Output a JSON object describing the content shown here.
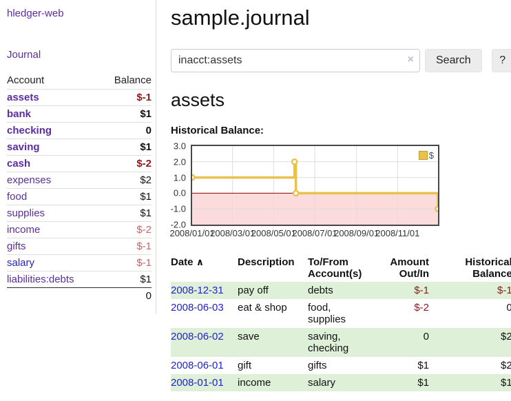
{
  "app": {
    "brand": "hledger-web"
  },
  "colors": {
    "link_purple": "#5b2d9e",
    "link_blue": "#2222cc",
    "negative_strong": "#8b1a1a",
    "negative_soft": "#c16868",
    "row_shaded_green": "#dff0d8",
    "chart_line_gold": "#e8c24d",
    "chart_negative_fill": "#fbdbdb",
    "chart_zero_line": "#990000"
  },
  "sidebar": {
    "journal_link": "Journal",
    "columns": {
      "account": "Account",
      "balance": "Balance"
    },
    "accounts": [
      {
        "name": "assets",
        "balance": "$-1"
      },
      {
        "name": "bank",
        "balance": "$1"
      },
      {
        "name": "checking",
        "balance": "0"
      },
      {
        "name": "saving",
        "balance": "$1"
      },
      {
        "name": "cash",
        "balance": "$-2"
      },
      {
        "name": "expenses",
        "balance": "$2"
      },
      {
        "name": "food",
        "balance": "$1"
      },
      {
        "name": "supplies",
        "balance": "$1"
      },
      {
        "name": "income",
        "balance": "$-2"
      },
      {
        "name": "gifts",
        "balance": "$-1"
      },
      {
        "name": "salary",
        "balance": "$-1"
      },
      {
        "name": "liabilities:debts",
        "balance": "$1"
      }
    ],
    "total": "0"
  },
  "header": {
    "title": "sample.journal"
  },
  "search": {
    "value": "inacct:assets",
    "clear_icon": "×",
    "search_button": "Search",
    "help_button": "?"
  },
  "account_page": {
    "heading": "assets",
    "chart_title": "Historical Balance:"
  },
  "chart_data": {
    "type": "line",
    "title": "Historical Balance",
    "style": "step",
    "x_range": [
      "2008-01-01",
      "2008-12-31"
    ],
    "ylim": [
      -2.0,
      3.0
    ],
    "yticks": [
      "3.0",
      "2.0",
      "1.0",
      "0.0",
      "-1.0",
      "-2.0"
    ],
    "xticks": [
      "2008/01/01",
      "2008/03/01",
      "2008/05/01",
      "2008/07/01",
      "2008/09/01",
      "2008/11/01"
    ],
    "series": [
      {
        "name": "$",
        "points": [
          [
            "2008-01-01",
            1
          ],
          [
            "2008-06-01",
            2
          ],
          [
            "2008-06-03",
            0
          ],
          [
            "2008-12-31",
            -1
          ]
        ]
      }
    ],
    "legend": {
      "label": "$",
      "position": "top-right"
    },
    "grid": true
  },
  "register": {
    "sort_icon": "∧",
    "headers": {
      "date": "Date",
      "description": "Description",
      "accounts_line1": "To/From",
      "accounts_line2": "Account(s)",
      "amount_line1": "Amount",
      "amount_line2": "Out/In",
      "balance_line1": "Historical",
      "balance_line2": "Balance"
    },
    "rows": [
      {
        "date": "2008-12-31",
        "description": "pay off",
        "accounts": "debts",
        "amount": "$-1",
        "balance": "$-1"
      },
      {
        "date": "2008-06-03",
        "description": "eat & shop",
        "accounts": "food, supplies",
        "amount": "$-2",
        "balance": "0"
      },
      {
        "date": "2008-06-02",
        "description": "save",
        "accounts": "saving, checking",
        "amount": "0",
        "balance": "$2"
      },
      {
        "date": "2008-06-01",
        "description": "gift",
        "accounts": "gifts",
        "amount": "$1",
        "balance": "$2"
      },
      {
        "date": "2008-01-01",
        "description": "income",
        "accounts": "salary",
        "amount": "$1",
        "balance": "$1"
      }
    ]
  }
}
